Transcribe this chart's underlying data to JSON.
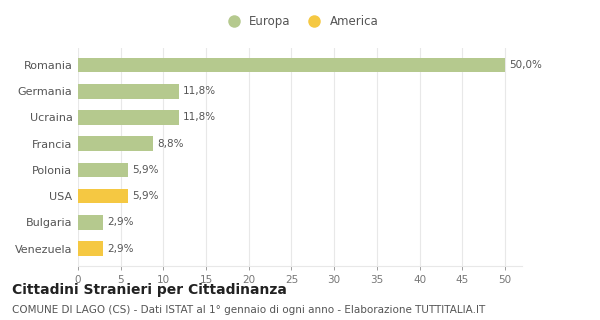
{
  "categories": [
    "Venezuela",
    "Bulgaria",
    "USA",
    "Polonia",
    "Francia",
    "Ucraina",
    "Germania",
    "Romania"
  ],
  "values": [
    2.9,
    2.9,
    5.9,
    5.9,
    8.8,
    11.8,
    11.8,
    50.0
  ],
  "labels": [
    "2,9%",
    "2,9%",
    "5,9%",
    "5,9%",
    "8,8%",
    "11,8%",
    "11,8%",
    "50,0%"
  ],
  "colors": [
    "#f5c842",
    "#b5c98e",
    "#f5c842",
    "#b5c98e",
    "#b5c98e",
    "#b5c98e",
    "#b5c98e",
    "#b5c98e"
  ],
  "legend_europa_color": "#b5c98e",
  "legend_america_color": "#f5c842",
  "xlim": [
    0,
    52
  ],
  "xticks": [
    0,
    5,
    10,
    15,
    20,
    25,
    30,
    35,
    40,
    45,
    50
  ],
  "title": "Cittadini Stranieri per Cittadinanza",
  "subtitle": "COMUNE DI LAGO (CS) - Dati ISTAT al 1° gennaio di ogni anno - Elaborazione TUTTITALIA.IT",
  "bg_color": "#ffffff",
  "grid_color": "#e8e8e8",
  "bar_height": 0.55,
  "label_fontsize": 7.5,
  "title_fontsize": 10,
  "subtitle_fontsize": 7.5,
  "ytick_fontsize": 8,
  "xtick_fontsize": 7.5
}
